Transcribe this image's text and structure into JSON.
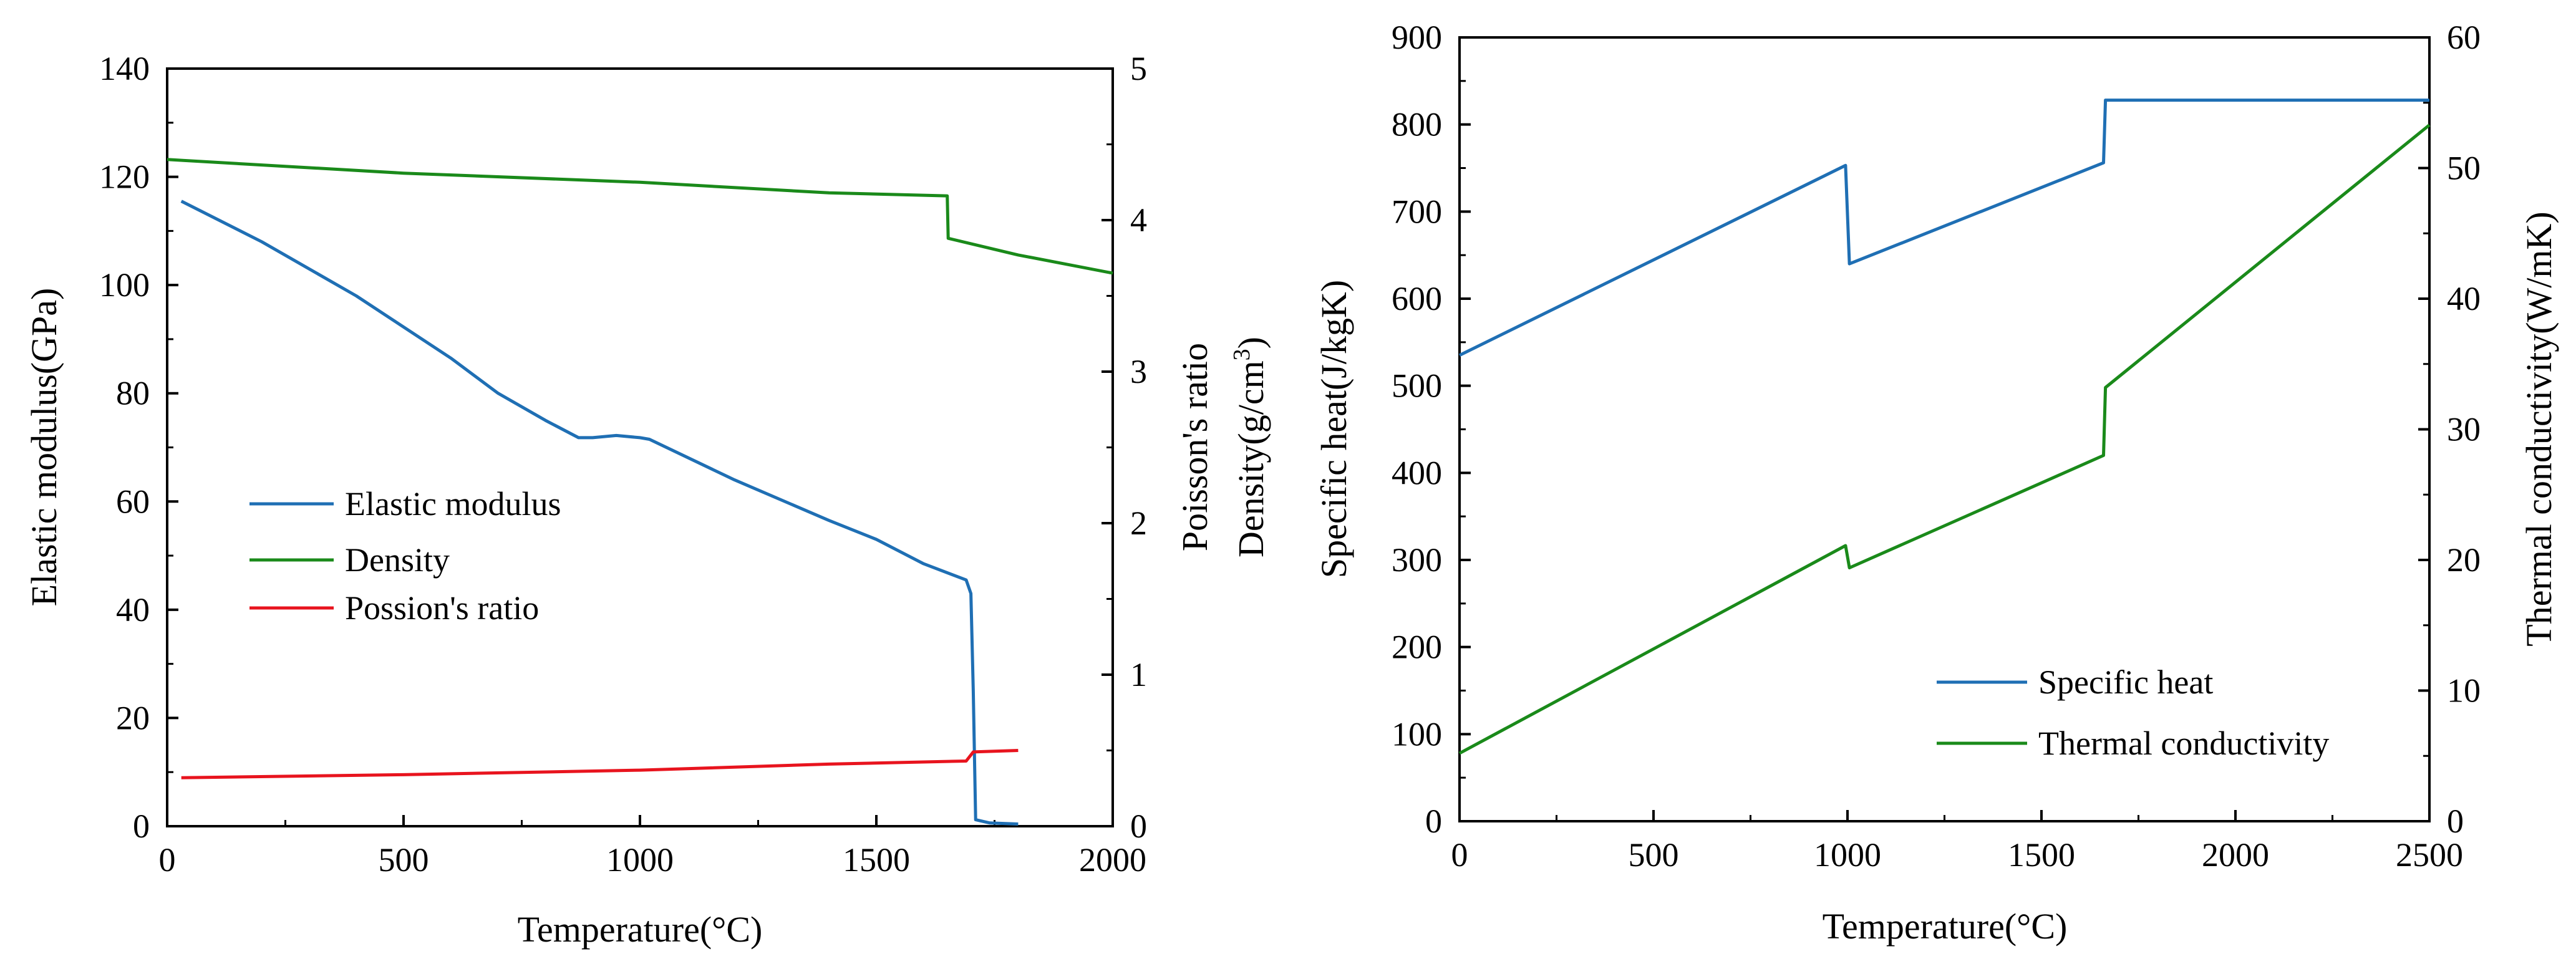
{
  "chart_data": [
    {
      "type": "line",
      "xlabel": "Temperature(°C)",
      "ylabel_left": "Elastic modulus(GPa)",
      "ylabel_right_1": "Poisson's ratio",
      "ylabel_right_2_prefix": "Density(g/cm",
      "ylabel_right_2_sup": "3",
      "ylabel_right_2_suffix": ")",
      "xlim": [
        0,
        2000
      ],
      "ylim_left": [
        0,
        140
      ],
      "ylim_right": [
        0,
        5
      ],
      "x_ticks": [
        0,
        500,
        1000,
        1500,
        2000
      ],
      "y_left_ticks": [
        0,
        20,
        40,
        60,
        80,
        100,
        120,
        140
      ],
      "y_right_ticks": [
        0,
        1,
        2,
        3,
        4,
        5
      ],
      "legend": [
        "Elastic modulus",
        "Density",
        "Possion's ratio"
      ],
      "series": [
        {
          "name": "Elastic modulus",
          "axis": "left",
          "color": "#1f6fb4",
          "points": [
            [
              30,
              115.5
            ],
            [
              200,
              108
            ],
            [
              400,
              98
            ],
            [
              600,
              86.5
            ],
            [
              700,
              80
            ],
            [
              800,
              75
            ],
            [
              870,
              71.8
            ],
            [
              900,
              71.8
            ],
            [
              950,
              72.2
            ],
            [
              1000,
              71.8
            ],
            [
              1020,
              71.5
            ],
            [
              1200,
              64
            ],
            [
              1400,
              56.5
            ],
            [
              1500,
              53
            ],
            [
              1600,
              48.5
            ],
            [
              1690,
              45.5
            ],
            [
              1700,
              43
            ],
            [
              1705,
              25
            ],
            [
              1710,
              1.2
            ],
            [
              1740,
              0.6
            ],
            [
              1800,
              0.4
            ]
          ]
        },
        {
          "name": "Density",
          "axis": "right",
          "color": "#1a8a1a",
          "points": [
            [
              0,
              4.4
            ],
            [
              500,
              4.31
            ],
            [
              1000,
              4.25
            ],
            [
              1400,
              4.18
            ],
            [
              1650,
              4.16
            ],
            [
              1652,
              3.88
            ],
            [
              1800,
              3.77
            ],
            [
              2000,
              3.65
            ]
          ]
        },
        {
          "name": "Possion's ratio",
          "axis": "right",
          "color": "#e8141e",
          "points": [
            [
              30,
              0.32
            ],
            [
              500,
              0.34
            ],
            [
              1000,
              0.37
            ],
            [
              1400,
              0.41
            ],
            [
              1690,
              0.43
            ],
            [
              1705,
              0.49
            ],
            [
              1800,
              0.5
            ]
          ]
        }
      ]
    },
    {
      "type": "line",
      "xlabel": "Temperature(°C)",
      "ylabel_left": "Specific heat(J/kgK)",
      "ylabel_right": "Thermal conductivity(W/mK)",
      "xlim": [
        0,
        2500
      ],
      "ylim_left": [
        0,
        900
      ],
      "ylim_right": [
        0,
        60
      ],
      "x_ticks": [
        0,
        500,
        1000,
        1500,
        2000,
        2500
      ],
      "y_left_ticks": [
        0,
        100,
        200,
        300,
        400,
        500,
        600,
        700,
        800,
        900
      ],
      "y_right_ticks": [
        0,
        10,
        20,
        30,
        40,
        50,
        60
      ],
      "legend": [
        "Specific heat",
        "Thermal conductivity"
      ],
      "series": [
        {
          "name": "Specific heat",
          "axis": "left",
          "color": "#1f6fb4",
          "points": [
            [
              0,
              535
            ],
            [
              995,
              753
            ],
            [
              1005,
              640
            ],
            [
              1660,
              756
            ],
            [
              1665,
              828
            ],
            [
              2500,
              828
            ]
          ]
        },
        {
          "name": "Thermal conductivity",
          "axis": "right",
          "color": "#1a8a1a",
          "points": [
            [
              0,
              5.2
            ],
            [
              995,
              21.1
            ],
            [
              1005,
              19.4
            ],
            [
              1660,
              28
            ],
            [
              1665,
              33.2
            ],
            [
              2500,
              53.3
            ]
          ]
        }
      ]
    }
  ]
}
